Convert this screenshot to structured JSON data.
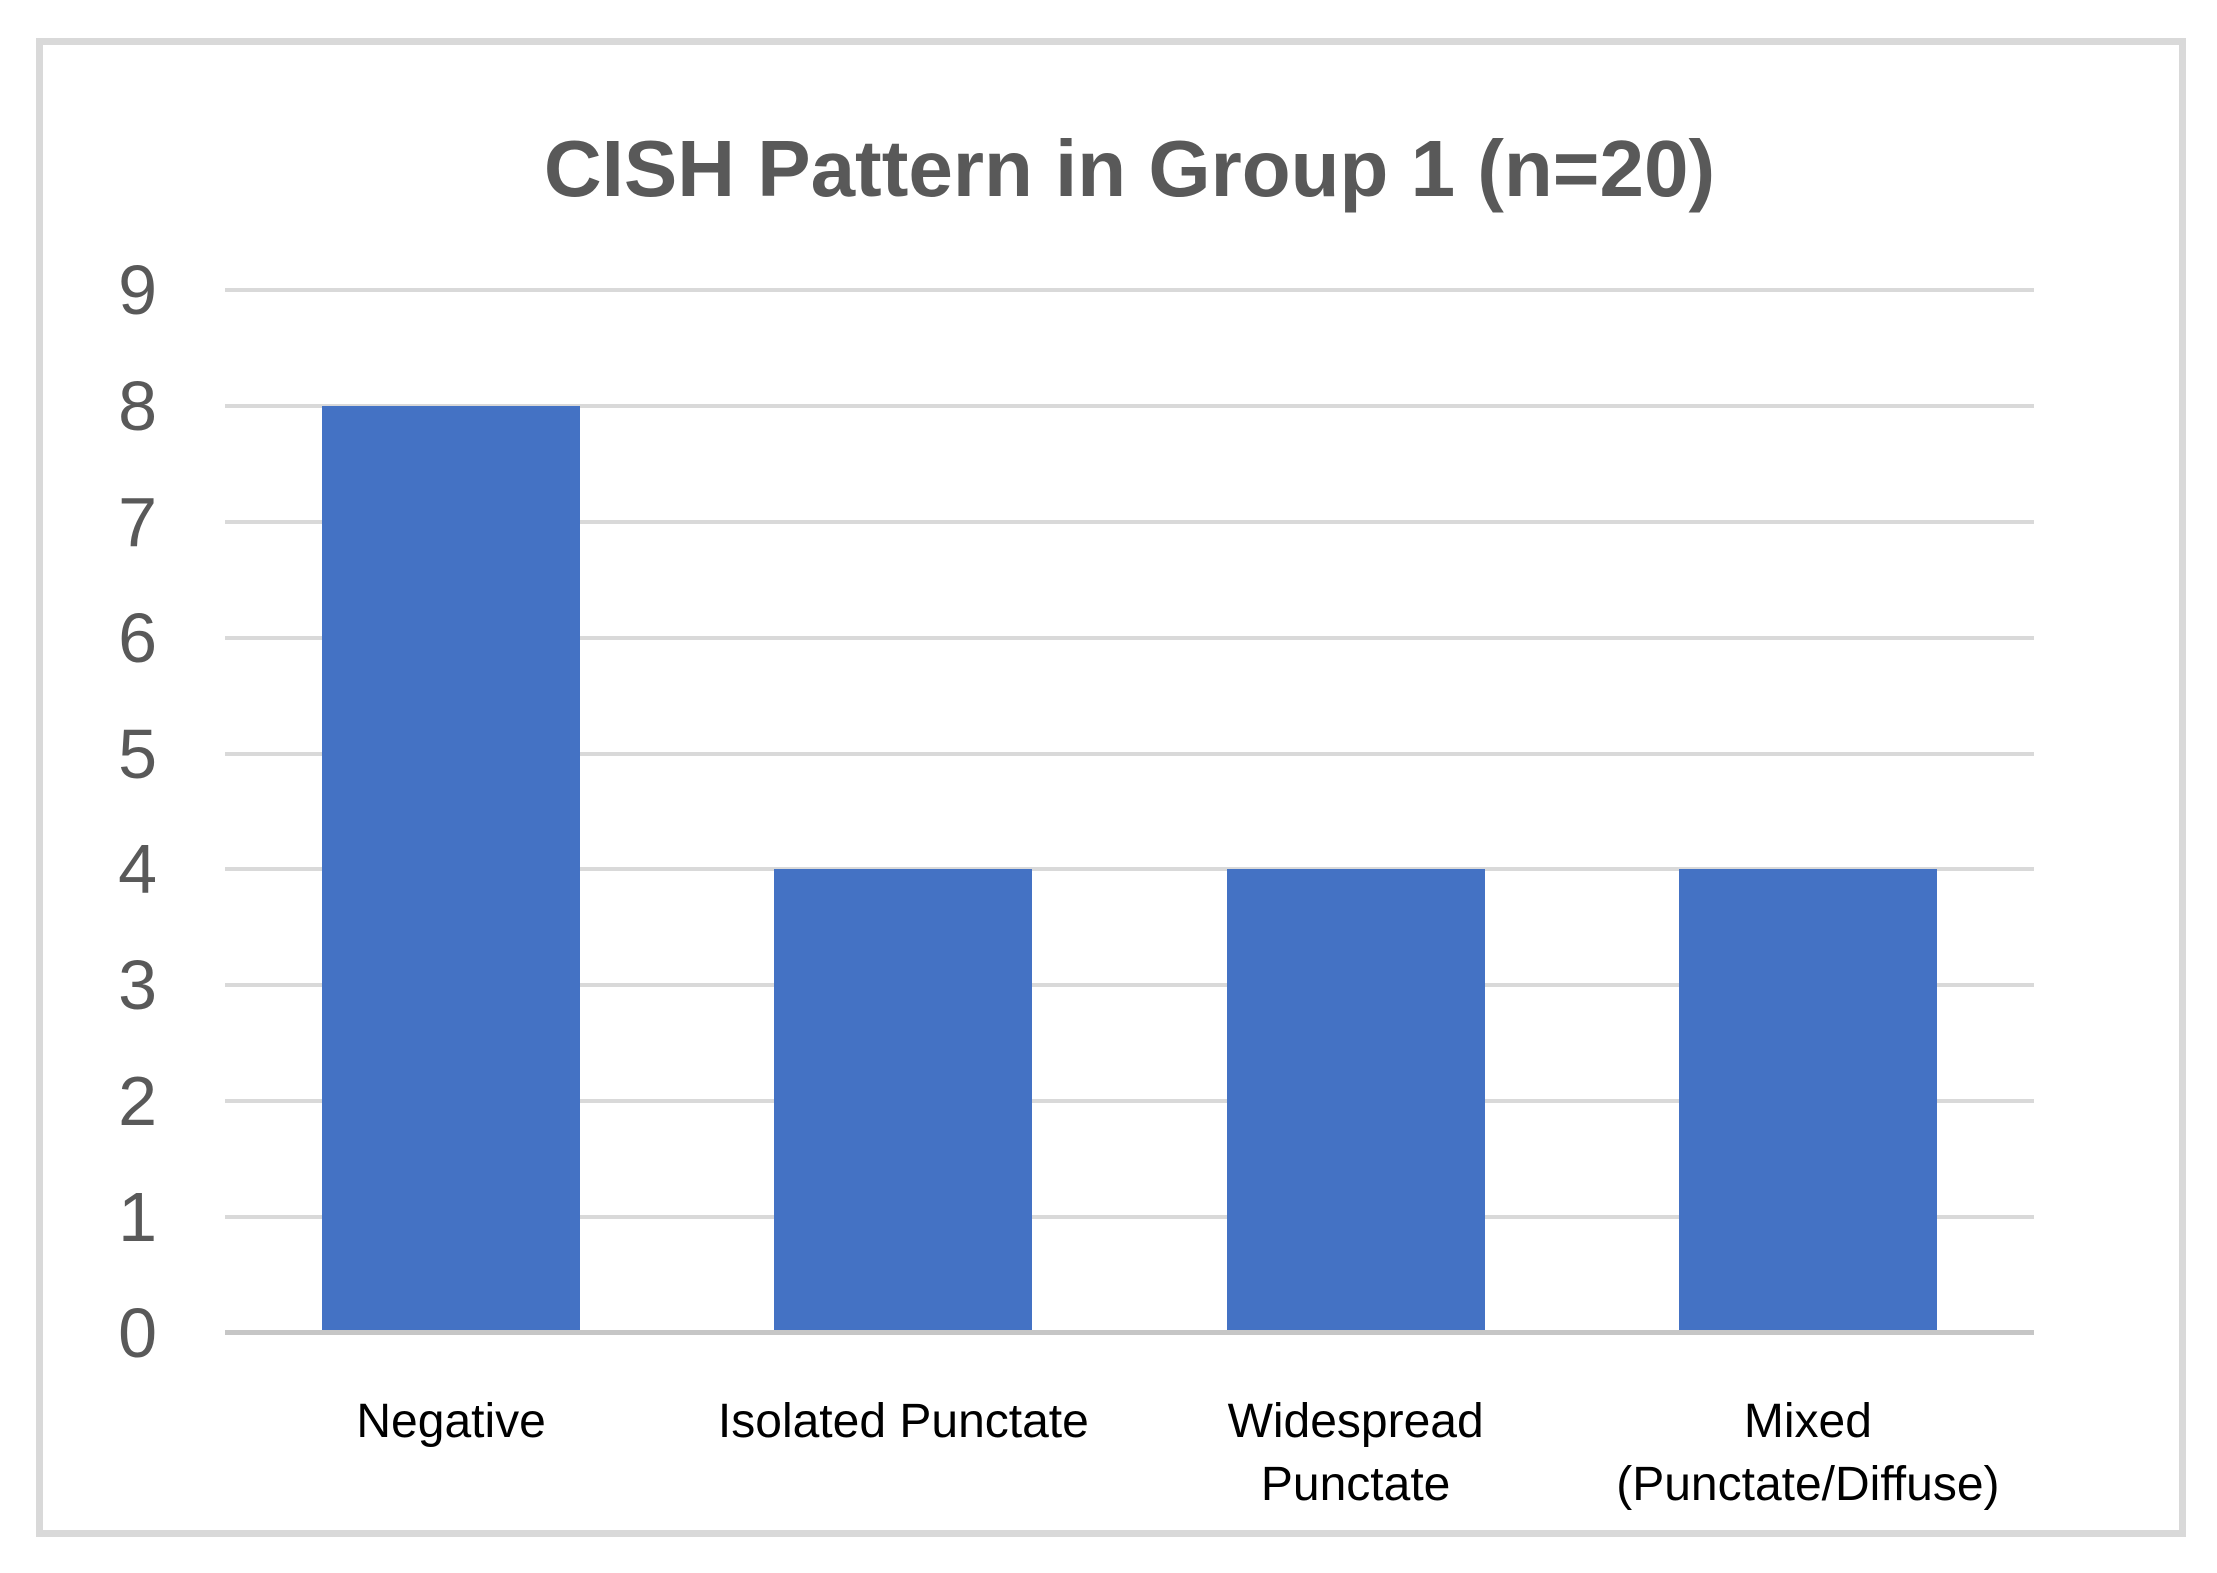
{
  "title": "CISH Pattern in Group 1 (n=20)",
  "colors": {
    "background": "#FFFFFF",
    "frame_border": "#D9D9D9",
    "bar": "#4472C4",
    "gridline": "#D9D9D9",
    "axis_line": "#C6C6C6",
    "title_text": "#595959",
    "y_tick_text": "#595959",
    "x_tick_text": "#000000"
  },
  "chart_data": {
    "type": "bar",
    "title": "CISH Pattern in Group 1 (n=20)",
    "categories": [
      "Negative",
      "Isolated Punctate",
      "Widespread\nPunctate",
      "Mixed\n(Punctate/Diffuse)"
    ],
    "values": [
      8,
      4,
      4,
      4
    ],
    "series_color": "#4472C4",
    "xlabel": "",
    "ylabel": "",
    "ylim": [
      0,
      9
    ],
    "yticks": [
      0,
      1,
      2,
      3,
      4,
      5,
      6,
      7,
      8,
      9
    ],
    "grid": "horizontal-gridlines",
    "legend": "none",
    "data_labels": "none"
  }
}
